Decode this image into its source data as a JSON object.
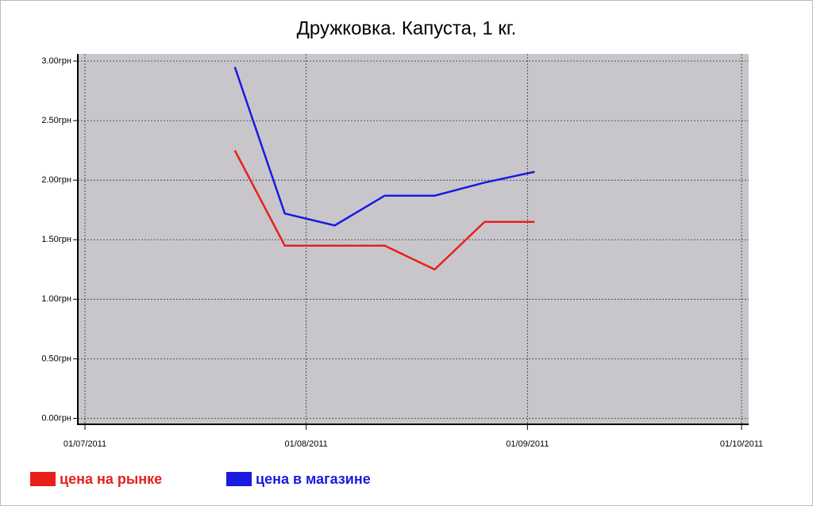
{
  "chart_data": {
    "type": "line",
    "title": "Дружковка. Капуста, 1 кг.",
    "x": [
      "2011-07-22",
      "2011-07-29",
      "2011-08-05",
      "2011-08-12",
      "2011-08-19",
      "2011-08-26",
      "2011-09-02"
    ],
    "series": [
      {
        "name": "цена на рынке",
        "color": "#e8201c",
        "values": [
          2.25,
          1.45,
          1.45,
          1.45,
          1.25,
          1.65,
          1.65
        ]
      },
      {
        "name": "цена в магазине",
        "color": "#1a1ae0",
        "values": [
          2.95,
          1.72,
          1.62,
          1.87,
          1.87,
          1.98,
          2.07
        ]
      }
    ],
    "xlim": [
      "2011-06-30",
      "2011-10-02"
    ],
    "xticks": [
      {
        "value": "2011-07-01",
        "label": "01/07/2011"
      },
      {
        "value": "2011-08-01",
        "label": "01/08/2011"
      },
      {
        "value": "2011-09-01",
        "label": "01/09/2011"
      },
      {
        "value": "2011-10-01",
        "label": "01/10/2011"
      }
    ],
    "ylim": [
      -0.05,
      3.06
    ],
    "yticks": [
      {
        "value": 0,
        "label": "0.00грн"
      },
      {
        "value": 0.5,
        "label": "0.50грн"
      },
      {
        "value": 1,
        "label": "1.00грн"
      },
      {
        "value": 1.5,
        "label": "1.50грн"
      },
      {
        "value": 2,
        "label": "2.00грн"
      },
      {
        "value": 2.5,
        "label": "2.50грн"
      },
      {
        "value": 3,
        "label": "3.00грн"
      }
    ],
    "grid": true,
    "legend": "bottom-left",
    "background": "#c8c6cb"
  }
}
